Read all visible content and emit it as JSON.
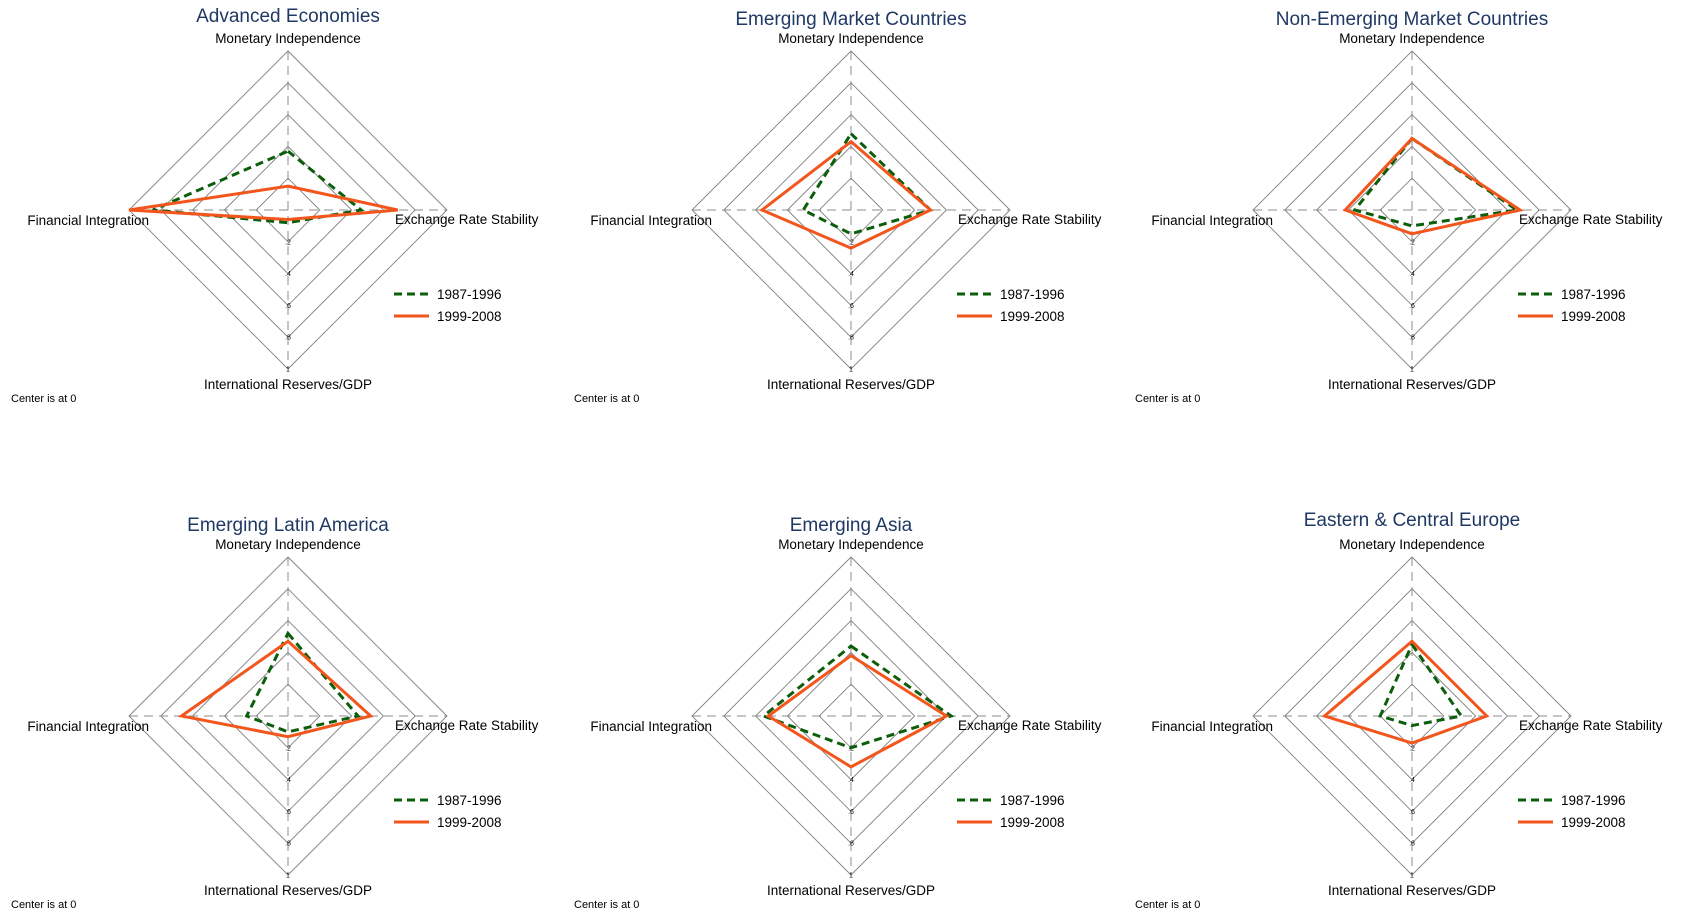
{
  "colors": {
    "title": "#1f3864",
    "grid": "#808080",
    "axis": "#8c8c8c",
    "series_1": "#0b5e0b",
    "series_2": "#f2561d"
  },
  "chart_data": [
    {
      "type": "radar",
      "title": "Advanced Economies",
      "axes": [
        "Monetary Independence",
        "Exchange Rate Stability",
        "International Reserves/GDP",
        "Financial Integration"
      ],
      "ticks": [
        ".2",
        ".4",
        ".6",
        ".8",
        "1"
      ],
      "range": [
        0,
        1
      ],
      "legend": "right",
      "center_note": "Center is at 0",
      "series": [
        {
          "name": "1987-1996",
          "style": "dashed",
          "values": [
            0.37,
            0.46,
            0.08,
            0.85
          ]
        },
        {
          "name": "1999-2008",
          "style": "solid",
          "values": [
            0.15,
            0.69,
            0.06,
            1.0
          ]
        }
      ]
    },
    {
      "type": "radar",
      "title": "Emerging Market Countries",
      "axes": [
        "Monetary Independence",
        "Exchange Rate Stability",
        "International Reserves/GDP",
        "Financial Integration"
      ],
      "ticks": [
        ".2",
        ".4",
        ".6",
        ".8",
        "1"
      ],
      "range": [
        0,
        1
      ],
      "legend": "right",
      "center_note": "Center is at 0",
      "series": [
        {
          "name": "1987-1996",
          "style": "dashed",
          "values": [
            0.48,
            0.5,
            0.15,
            0.3
          ]
        },
        {
          "name": "1999-2008",
          "style": "solid",
          "values": [
            0.43,
            0.5,
            0.24,
            0.56
          ]
        }
      ]
    },
    {
      "type": "radar",
      "title": "Non-Emerging Market Countries",
      "axes": [
        "Monetary Independence",
        "Exchange Rate Stability",
        "International Reserves/GDP",
        "Financial Integration"
      ],
      "ticks": [
        ".2",
        ".4",
        ".6",
        ".8",
        "1"
      ],
      "range": [
        0,
        1
      ],
      "legend": "right",
      "center_note": "Center is at 0",
      "series": [
        {
          "name": "1987-1996",
          "style": "dashed",
          "values": [
            0.45,
            0.66,
            0.1,
            0.36
          ]
        },
        {
          "name": "1999-2008",
          "style": "solid",
          "values": [
            0.45,
            0.68,
            0.15,
            0.42
          ]
        }
      ]
    },
    {
      "type": "radar",
      "title": "Emerging Latin America",
      "axes": [
        "Monetary Independence",
        "Exchange Rate Stability",
        "International Reserves/GDP",
        "Financial Integration"
      ],
      "ticks": [
        ".2",
        ".4",
        ".6",
        ".8",
        "1"
      ],
      "range": [
        0,
        1
      ],
      "legend": "right",
      "center_note": "Center is at 0",
      "series": [
        {
          "name": "1987-1996",
          "style": "dashed",
          "values": [
            0.52,
            0.44,
            0.1,
            0.26
          ]
        },
        {
          "name": "1999-2008",
          "style": "solid",
          "values": [
            0.47,
            0.52,
            0.13,
            0.67
          ]
        }
      ]
    },
    {
      "type": "radar",
      "title": "Emerging Asia",
      "axes": [
        "Monetary Independence",
        "Exchange Rate Stability",
        "International Reserves/GDP",
        "Financial Integration"
      ],
      "ticks": [
        ".2",
        ".4",
        ".6",
        ".8",
        "1"
      ],
      "range": [
        0,
        1
      ],
      "legend": "right",
      "center_note": "Center is at 0",
      "series": [
        {
          "name": "1987-1996",
          "style": "dashed",
          "values": [
            0.44,
            0.63,
            0.2,
            0.55
          ]
        },
        {
          "name": "1999-2008",
          "style": "solid",
          "values": [
            0.38,
            0.6,
            0.32,
            0.52
          ]
        }
      ]
    },
    {
      "type": "radar",
      "title": "Eastern & Central Europe",
      "axes": [
        "Monetary Independence",
        "Exchange Rate Stability",
        "International Reserves/GDP",
        "Financial Integration"
      ],
      "ticks": [
        ".2",
        ".4",
        ".6",
        ".8",
        "1"
      ],
      "range": [
        0,
        1
      ],
      "legend": "right",
      "center_note": "Center is at 0",
      "series": [
        {
          "name": "1987-1996",
          "style": "dashed",
          "values": [
            0.45,
            0.31,
            0.06,
            0.2
          ]
        },
        {
          "name": "1999-2008",
          "style": "solid",
          "values": [
            0.47,
            0.47,
            0.17,
            0.55
          ]
        }
      ]
    }
  ]
}
